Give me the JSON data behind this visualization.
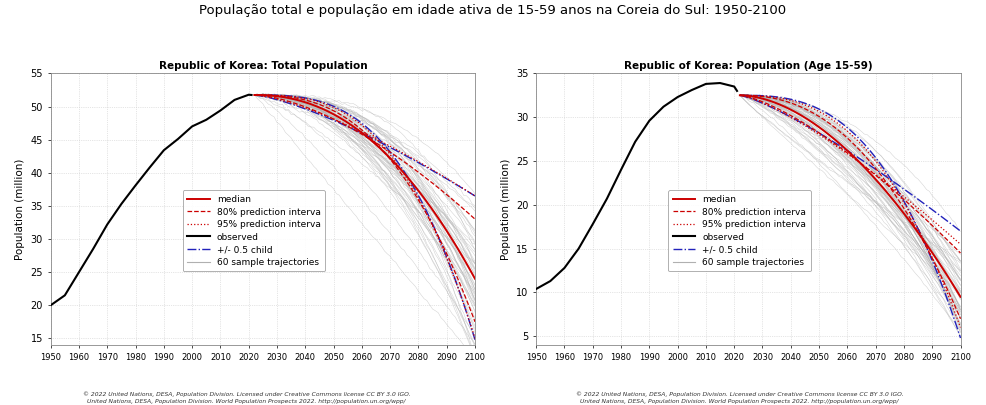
{
  "title": "População total e população em idade ativa de 15-59 anos na Coreia do Sul: 1950-2100",
  "title_fontsize": 10,
  "subtitle1": "Republic of Korea: Total Population",
  "subtitle2": "Republic of Korea: Population (Age 15-59)",
  "ylabel": "Population (million)",
  "footnote1": "© 2022 United Nations, DESA, Population Division. Licensed under Creative Commons license CC BY 3.0 IGO.",
  "footnote2": "United Nations, DESA, Population Division. World Population Prospects 2022. http://population.un.org/wpp/",
  "colors": {
    "observed": "#000000",
    "median": "#cc0000",
    "half_child": "#2222bb",
    "sample": "#b0b0b0",
    "background": "#ffffff",
    "grid": "#cccccc"
  },
  "left_ylim": [
    14,
    55
  ],
  "left_yticks": [
    15,
    20,
    25,
    30,
    35,
    40,
    45,
    50,
    55
  ],
  "right_ylim": [
    4,
    35
  ],
  "right_yticks": [
    5,
    10,
    15,
    20,
    25,
    30,
    35
  ],
  "xlim": [
    1950,
    2100
  ],
  "xticks": [
    1950,
    1960,
    1970,
    1980,
    1990,
    2000,
    2010,
    2020,
    2030,
    2040,
    2050,
    2060,
    2070,
    2080,
    2090,
    2100
  ],
  "legend_entries": [
    "median",
    "80% prediction interva",
    "95% prediction interva",
    "observed",
    "+/- 0.5 child",
    "60 sample trajectories"
  ]
}
